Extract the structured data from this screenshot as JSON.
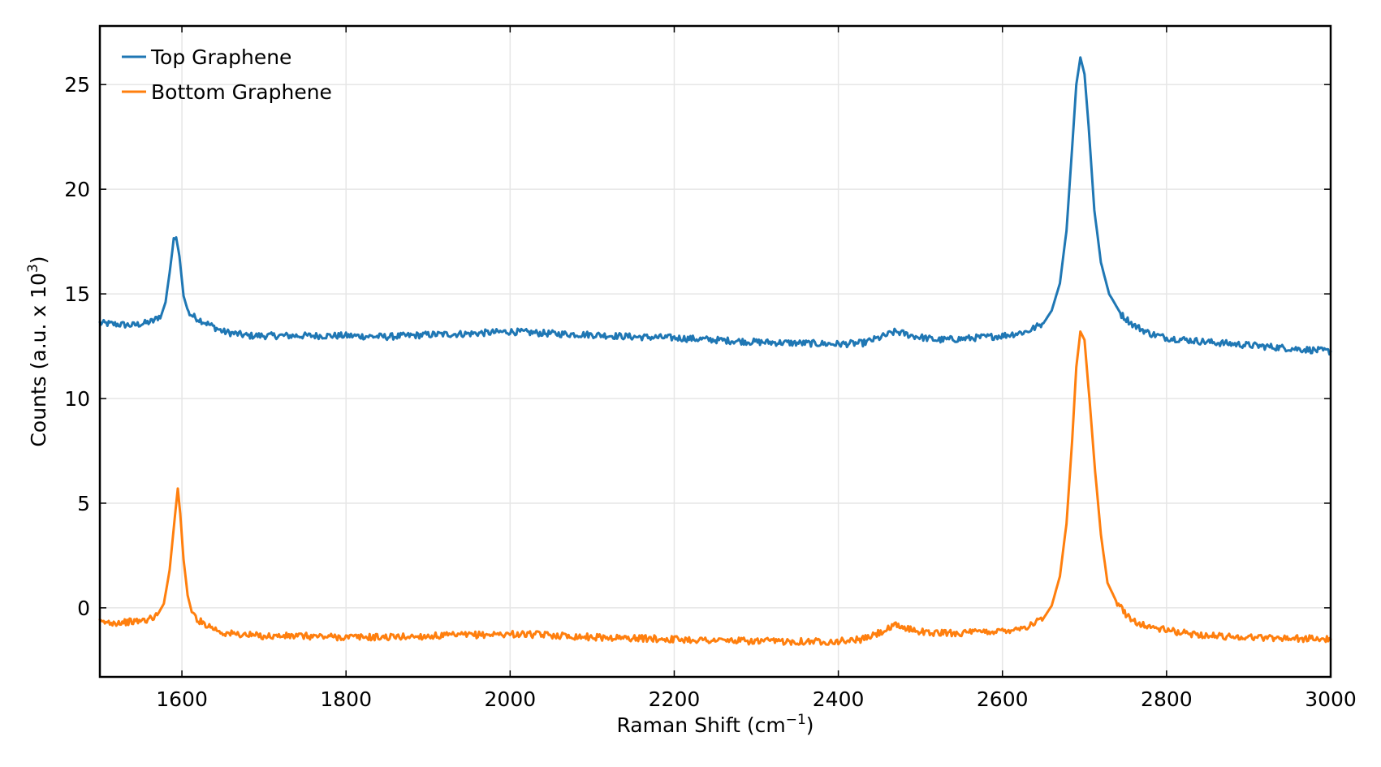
{
  "chart_data": {
    "type": "line",
    "title": "",
    "xlabel_main": "Raman Shift (cm",
    "xlabel_sup": "−1",
    "xlabel_end": ")",
    "ylabel_main": "Counts (a.u. x 10",
    "ylabel_sup": "3",
    "ylabel_end": ")",
    "xlim": [
      1500,
      3000
    ],
    "ylim": [
      -3.3,
      27.8
    ],
    "xticks": [
      1600,
      1800,
      2000,
      2200,
      2400,
      2600,
      2800,
      3000
    ],
    "yticks": [
      0,
      5,
      10,
      15,
      20,
      25
    ],
    "grid": true,
    "legend_position": "top-left",
    "series": [
      {
        "name": "Top Graphene",
        "color": "#1f77b4",
        "points": [
          [
            1500,
            13.6
          ],
          [
            1520,
            13.55
          ],
          [
            1540,
            13.5
          ],
          [
            1555,
            13.6
          ],
          [
            1565,
            13.7
          ],
          [
            1575,
            14.0
          ],
          [
            1580,
            14.6
          ],
          [
            1585,
            16.0
          ],
          [
            1590,
            17.6
          ],
          [
            1593,
            17.7
          ],
          [
            1597,
            16.8
          ],
          [
            1602,
            14.9
          ],
          [
            1608,
            14.1
          ],
          [
            1615,
            13.9
          ],
          [
            1630,
            13.6
          ],
          [
            1650,
            13.2
          ],
          [
            1680,
            13.0
          ],
          [
            1700,
            13.0
          ],
          [
            1750,
            13.0
          ],
          [
            1800,
            13.0
          ],
          [
            1850,
            12.95
          ],
          [
            1900,
            13.05
          ],
          [
            1950,
            13.1
          ],
          [
            2000,
            13.2
          ],
          [
            2050,
            13.1
          ],
          [
            2100,
            13.05
          ],
          [
            2150,
            12.95
          ],
          [
            2200,
            12.9
          ],
          [
            2250,
            12.8
          ],
          [
            2300,
            12.7
          ],
          [
            2350,
            12.65
          ],
          [
            2400,
            12.6
          ],
          [
            2430,
            12.65
          ],
          [
            2450,
            12.9
          ],
          [
            2470,
            13.2
          ],
          [
            2490,
            13.0
          ],
          [
            2520,
            12.8
          ],
          [
            2550,
            12.85
          ],
          [
            2600,
            13.0
          ],
          [
            2630,
            13.2
          ],
          [
            2650,
            13.6
          ],
          [
            2660,
            14.2
          ],
          [
            2670,
            15.5
          ],
          [
            2678,
            18.0
          ],
          [
            2685,
            22.0
          ],
          [
            2690,
            25.0
          ],
          [
            2695,
            26.3
          ],
          [
            2700,
            25.5
          ],
          [
            2705,
            23.0
          ],
          [
            2712,
            19.0
          ],
          [
            2720,
            16.5
          ],
          [
            2730,
            15.0
          ],
          [
            2745,
            14.0
          ],
          [
            2760,
            13.5
          ],
          [
            2780,
            13.1
          ],
          [
            2800,
            12.9
          ],
          [
            2850,
            12.7
          ],
          [
            2900,
            12.55
          ],
          [
            2950,
            12.4
          ],
          [
            3000,
            12.25
          ]
        ]
      },
      {
        "name": "Bottom Graphene",
        "color": "#ff7f0e",
        "points": [
          [
            1500,
            -0.7
          ],
          [
            1520,
            -0.7
          ],
          [
            1545,
            -0.65
          ],
          [
            1560,
            -0.55
          ],
          [
            1570,
            -0.35
          ],
          [
            1578,
            0.2
          ],
          [
            1585,
            1.8
          ],
          [
            1590,
            3.8
          ],
          [
            1595,
            5.7
          ],
          [
            1598,
            4.5
          ],
          [
            1602,
            2.3
          ],
          [
            1607,
            0.6
          ],
          [
            1612,
            -0.2
          ],
          [
            1620,
            -0.6
          ],
          [
            1635,
            -0.9
          ],
          [
            1650,
            -1.2
          ],
          [
            1680,
            -1.3
          ],
          [
            1700,
            -1.35
          ],
          [
            1750,
            -1.35
          ],
          [
            1800,
            -1.4
          ],
          [
            1850,
            -1.4
          ],
          [
            1900,
            -1.35
          ],
          [
            1950,
            -1.3
          ],
          [
            2000,
            -1.25
          ],
          [
            2050,
            -1.3
          ],
          [
            2100,
            -1.4
          ],
          [
            2150,
            -1.45
          ],
          [
            2200,
            -1.5
          ],
          [
            2250,
            -1.55
          ],
          [
            2300,
            -1.6
          ],
          [
            2350,
            -1.6
          ],
          [
            2400,
            -1.6
          ],
          [
            2430,
            -1.5
          ],
          [
            2450,
            -1.2
          ],
          [
            2470,
            -0.85
          ],
          [
            2485,
            -1.0
          ],
          [
            2510,
            -1.2
          ],
          [
            2550,
            -1.2
          ],
          [
            2600,
            -1.1
          ],
          [
            2630,
            -0.9
          ],
          [
            2650,
            -0.5
          ],
          [
            2660,
            0.1
          ],
          [
            2670,
            1.5
          ],
          [
            2678,
            4.0
          ],
          [
            2685,
            8.0
          ],
          [
            2690,
            11.5
          ],
          [
            2695,
            13.2
          ],
          [
            2700,
            12.8
          ],
          [
            2706,
            10.0
          ],
          [
            2713,
            6.5
          ],
          [
            2720,
            3.5
          ],
          [
            2728,
            1.2
          ],
          [
            2740,
            0.2
          ],
          [
            2755,
            -0.5
          ],
          [
            2770,
            -0.8
          ],
          [
            2790,
            -1.0
          ],
          [
            2820,
            -1.2
          ],
          [
            2860,
            -1.35
          ],
          [
            2900,
            -1.4
          ],
          [
            2950,
            -1.45
          ],
          [
            3000,
            -1.5
          ]
        ]
      }
    ]
  }
}
